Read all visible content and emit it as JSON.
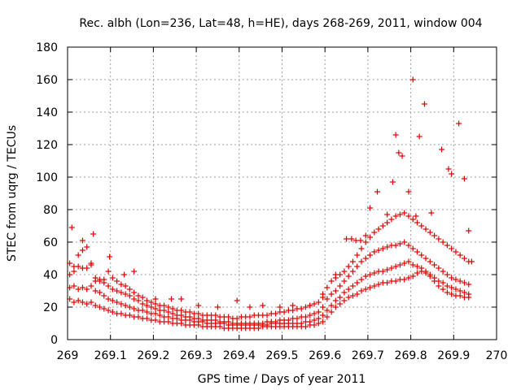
{
  "chart_data": {
    "type": "scatter",
    "title": "Rec. albh (Lon=236, Lat=48, h=HE), days 268-269, 2011, window 004",
    "xlabel": "GPS time / Days of year 2011",
    "ylabel": "STEC from uqrg / TECUs",
    "xlim": [
      269,
      270
    ],
    "ylim": [
      0,
      180
    ],
    "xticks": [
      "269",
      "269.1",
      "269.2",
      "269.3",
      "269.4",
      "269.5",
      "269.6",
      "269.7",
      "269.8",
      "269.9",
      "270"
    ],
    "yticks": [
      "0",
      "20",
      "40",
      "60",
      "80",
      "100",
      "120",
      "140",
      "160",
      "180"
    ],
    "grid": true,
    "legend": "none",
    "marker": "plus",
    "color": "#e00000",
    "series": [
      {
        "x": [
          269.005,
          269.015,
          269.025,
          269.035,
          269.045,
          269.055,
          269.065,
          269.075,
          269.085,
          269.095,
          269.105,
          269.115,
          269.125,
          269.135,
          269.145,
          269.155,
          269.165,
          269.175,
          269.185,
          269.195,
          269.205,
          269.215,
          269.225,
          269.235,
          269.245,
          269.255,
          269.265,
          269.275,
          269.285,
          269.295,
          269.305,
          269.315,
          269.325,
          269.335,
          269.345,
          269.355,
          269.365,
          269.375,
          269.385,
          269.395,
          269.405,
          269.415,
          269.425,
          269.435,
          269.445,
          269.455,
          269.465,
          269.475,
          269.485,
          269.495,
          269.505,
          269.515,
          269.525,
          269.535,
          269.545,
          269.555,
          269.565,
          269.575,
          269.585,
          269.595,
          269.605,
          269.615,
          269.625,
          269.635,
          269.645,
          269.655,
          269.665,
          269.675,
          269.685,
          269.695,
          269.705,
          269.715,
          269.725,
          269.735,
          269.745,
          269.755,
          269.765,
          269.775,
          269.785,
          269.795,
          269.805,
          269.815,
          269.825,
          269.835,
          269.845,
          269.855,
          269.865,
          269.875,
          269.885,
          269.895,
          269.905,
          269.915,
          269.925,
          269.935
        ],
        "y": [
          25,
          23,
          24,
          23,
          22,
          23,
          21,
          20,
          19,
          18,
          17,
          16,
          16,
          15,
          15,
          14,
          14,
          13,
          13,
          12,
          12,
          11,
          11,
          11,
          10,
          10,
          10,
          9,
          9,
          9,
          9,
          8,
          8,
          8,
          8,
          8,
          7,
          7,
          7,
          7,
          7,
          7,
          7,
          7,
          7,
          8,
          8,
          8,
          8,
          8,
          8,
          8,
          8,
          8,
          8,
          8,
          9,
          9,
          10,
          11,
          14,
          17,
          20,
          22,
          24,
          26,
          27,
          28,
          30,
          31,
          32,
          33,
          34,
          35,
          35,
          36,
          36,
          37,
          37,
          38,
          39,
          41,
          42,
          41,
          39,
          36,
          33,
          31,
          29,
          28,
          27,
          27,
          26,
          26
        ]
      },
      {
        "x": [
          269.005,
          269.015,
          269.025,
          269.035,
          269.045,
          269.055,
          269.065,
          269.075,
          269.085,
          269.095,
          269.105,
          269.115,
          269.125,
          269.135,
          269.145,
          269.155,
          269.165,
          269.175,
          269.185,
          269.195,
          269.205,
          269.215,
          269.225,
          269.235,
          269.245,
          269.255,
          269.265,
          269.275,
          269.285,
          269.295,
          269.305,
          269.315,
          269.325,
          269.335,
          269.345,
          269.355,
          269.365,
          269.375,
          269.385,
          269.395,
          269.405,
          269.415,
          269.425,
          269.435,
          269.445,
          269.455,
          269.465,
          269.475,
          269.485,
          269.495,
          269.505,
          269.515,
          269.525,
          269.535,
          269.545,
          269.555,
          269.565,
          269.575,
          269.585,
          269.595,
          269.605,
          269.615,
          269.625,
          269.635,
          269.645,
          269.655,
          269.665,
          269.675,
          269.685,
          269.695,
          269.705,
          269.715,
          269.725,
          269.735,
          269.745,
          269.755,
          269.765,
          269.775,
          269.785,
          269.795,
          269.805,
          269.815,
          269.825,
          269.835,
          269.845,
          269.855,
          269.865,
          269.875,
          269.885,
          269.895,
          269.905,
          269.915,
          269.925,
          269.935
        ],
        "y": [
          32,
          33,
          31,
          32,
          31,
          33,
          30,
          29,
          27,
          25,
          24,
          23,
          22,
          21,
          20,
          19,
          18,
          18,
          17,
          16,
          16,
          15,
          14,
          14,
          13,
          13,
          12,
          12,
          12,
          11,
          11,
          11,
          10,
          10,
          10,
          10,
          10,
          9,
          9,
          9,
          9,
          9,
          9,
          9,
          9,
          9,
          9,
          10,
          10,
          10,
          10,
          10,
          10,
          10,
          10,
          11,
          11,
          12,
          13,
          15,
          18,
          21,
          24,
          26,
          29,
          31,
          33,
          35,
          37,
          39,
          40,
          41,
          42,
          42,
          43,
          44,
          45,
          46,
          47,
          48,
          46,
          45,
          44,
          42,
          40,
          38,
          36,
          35,
          33,
          32,
          31,
          30,
          29,
          28
        ]
      },
      {
        "x": [
          269.005,
          269.015,
          269.025,
          269.035,
          269.045,
          269.055,
          269.065,
          269.075,
          269.085,
          269.095,
          269.105,
          269.115,
          269.125,
          269.135,
          269.145,
          269.155,
          269.165,
          269.175,
          269.185,
          269.195,
          269.205,
          269.215,
          269.225,
          269.235,
          269.245,
          269.255,
          269.265,
          269.275,
          269.285,
          269.295,
          269.305,
          269.315,
          269.325,
          269.335,
          269.345,
          269.355,
          269.365,
          269.375,
          269.385,
          269.395,
          269.405,
          269.415,
          269.425,
          269.435,
          269.445,
          269.455,
          269.465,
          269.475,
          269.485,
          269.495,
          269.505,
          269.515,
          269.525,
          269.535,
          269.545,
          269.555,
          269.565,
          269.575,
          269.585,
          269.595,
          269.605,
          269.615,
          269.625,
          269.635,
          269.645,
          269.655,
          269.665,
          269.675,
          269.685,
          269.695,
          269.705,
          269.715,
          269.725,
          269.735,
          269.745,
          269.755,
          269.765,
          269.775,
          269.785,
          269.795,
          269.805,
          269.815,
          269.825,
          269.835,
          269.845,
          269.855,
          269.865,
          269.875,
          269.885,
          269.895,
          269.905,
          269.915,
          269.925,
          269.935
        ],
        "y": [
          40,
          42,
          45,
          44,
          44,
          46,
          38,
          36,
          35,
          33,
          31,
          30,
          29,
          28,
          27,
          25,
          24,
          22,
          21,
          20,
          19,
          18,
          18,
          17,
          16,
          15,
          15,
          14,
          14,
          13,
          13,
          12,
          12,
          12,
          12,
          11,
          11,
          11,
          10,
          10,
          10,
          10,
          10,
          10,
          10,
          10,
          11,
          11,
          11,
          12,
          12,
          12,
          13,
          13,
          14,
          14,
          15,
          16,
          17,
          20,
          25,
          28,
          30,
          33,
          36,
          39,
          42,
          45,
          48,
          50,
          52,
          54,
          55,
          56,
          57,
          58,
          58,
          59,
          60,
          58,
          56,
          54,
          52,
          50,
          48,
          46,
          44,
          42,
          40,
          38,
          37,
          36,
          35,
          34
        ]
      },
      {
        "x": [
          269.005,
          269.015,
          269.025,
          269.035,
          269.045,
          269.055,
          269.065,
          269.075,
          269.085,
          269.095,
          269.105,
          269.115,
          269.125,
          269.135,
          269.145,
          269.155,
          269.165,
          269.175,
          269.185,
          269.195,
          269.205,
          269.215,
          269.225,
          269.235,
          269.245,
          269.255,
          269.265,
          269.275,
          269.285,
          269.295,
          269.305,
          269.315,
          269.325,
          269.335,
          269.345,
          269.355,
          269.365,
          269.375,
          269.385,
          269.395,
          269.405,
          269.415,
          269.425,
          269.435,
          269.445,
          269.455,
          269.465,
          269.475,
          269.485,
          269.495,
          269.505,
          269.515,
          269.525,
          269.535,
          269.545,
          269.555,
          269.565,
          269.575,
          269.585,
          269.595,
          269.605,
          269.615,
          269.625,
          269.635,
          269.645,
          269.655,
          269.665,
          269.675,
          269.685,
          269.695,
          269.705,
          269.715,
          269.725,
          269.735,
          269.745,
          269.755,
          269.765,
          269.775,
          269.785,
          269.795,
          269.805,
          269.815,
          269.825,
          269.835,
          269.845,
          269.855,
          269.865,
          269.875,
          269.885,
          269.895,
          269.905,
          269.915,
          269.925,
          269.935
        ],
        "y": [
          47,
          45,
          52,
          55,
          57,
          47,
          36,
          37,
          37,
          42,
          38,
          36,
          34,
          33,
          31,
          29,
          27,
          26,
          24,
          23,
          22,
          21,
          21,
          20,
          19,
          18,
          18,
          17,
          17,
          16,
          16,
          15,
          15,
          15,
          15,
          14,
          14,
          14,
          13,
          13,
          14,
          14,
          14,
          15,
          15,
          15,
          15,
          16,
          16,
          17,
          17,
          18,
          18,
          19,
          19,
          20,
          21,
          22,
          23,
          26,
          32,
          36,
          38,
          40,
          42,
          45,
          48,
          52,
          56,
          60,
          63,
          66,
          68,
          70,
          72,
          74,
          76,
          77,
          78,
          76,
          74,
          72,
          70,
          68,
          66,
          64,
          62,
          60,
          58,
          56,
          54,
          52,
          50,
          48
        ]
      },
      {
        "x": [
          269.01,
          269.035,
          269.06,
          269.098,
          269.132,
          269.155,
          269.205,
          269.242,
          269.265,
          269.305,
          269.35,
          269.395,
          269.425,
          269.455,
          269.495,
          269.525,
          269.565,
          269.595,
          269.625,
          269.65,
          269.662,
          269.672,
          269.683,
          269.695,
          269.705,
          269.722,
          269.745,
          269.758,
          269.765,
          269.772,
          269.78,
          269.795,
          269.805,
          269.812,
          269.82,
          269.832,
          269.848,
          269.872,
          269.888,
          269.895,
          269.912,
          269.925,
          269.935,
          269.942
        ],
        "y": [
          69,
          61,
          65,
          51,
          40,
          42,
          25,
          25,
          25,
          21,
          20,
          24,
          20,
          21,
          20,
          21,
          21,
          28,
          40,
          62,
          62,
          61,
          61,
          64,
          81,
          91,
          77,
          97,
          126,
          115,
          113,
          91,
          160,
          76,
          125,
          145,
          78,
          117,
          105,
          102,
          133,
          99,
          67,
          48
        ]
      }
    ]
  }
}
